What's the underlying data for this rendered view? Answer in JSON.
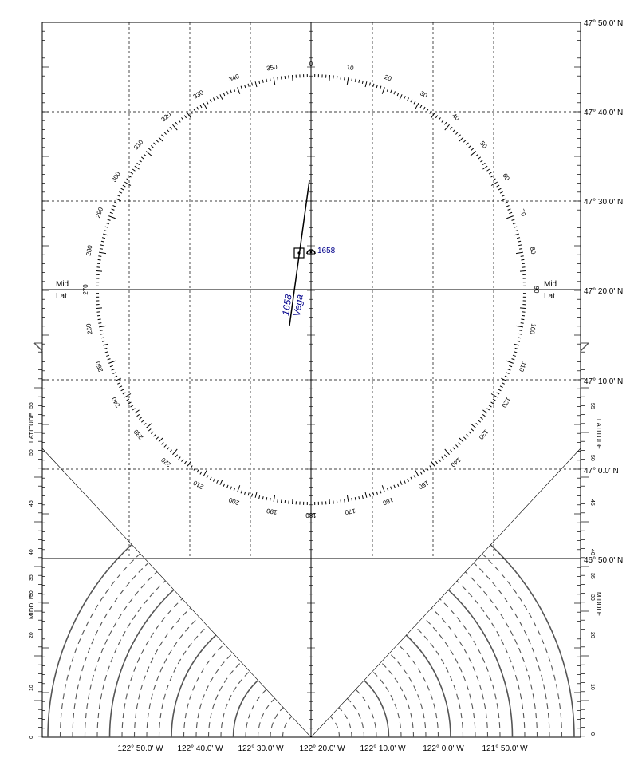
{
  "latitude_labels": [
    "47° 50.0' N",
    "47° 40.0' N",
    "47° 30.0' N",
    "47° 20.0' N",
    "47° 10.0' N",
    "47° 0.0' N",
    "46° 50.0' N"
  ],
  "longitude_labels": [
    "122° 50.0' W",
    "122° 40.0' W",
    "122° 30.0' W",
    "122° 20.0' W",
    "122° 10.0' W",
    "122° 0.0' W",
    "121° 50.0' W"
  ],
  "compass_rose": {
    "labels": [
      "0",
      "10",
      "20",
      "30",
      "40",
      "50",
      "60",
      "70",
      "80",
      "90",
      "100",
      "110",
      "120",
      "130",
      "140",
      "150",
      "160",
      "170",
      "180",
      "190",
      "200",
      "210",
      "220",
      "230",
      "240",
      "250",
      "260",
      "270",
      "280",
      "290",
      "300",
      "310",
      "320",
      "330",
      "340",
      "350"
    ]
  },
  "mid_lat": {
    "left": [
      "Mid",
      "Lat"
    ],
    "right": [
      "Mid",
      "Lat"
    ]
  },
  "scale": {
    "latitude_text": "LATITUDE",
    "middle_text": "MIDDLE",
    "left_ticks": [
      "55",
      "50",
      "45",
      "40",
      "35",
      "30",
      "20",
      "10",
      "0"
    ],
    "right_ticks": [
      "55",
      "50",
      "45",
      "40",
      "35",
      "30",
      "20",
      "10",
      "0"
    ]
  },
  "plot": {
    "lop_time": "1658",
    "lop_body": "Vega",
    "fix_time": "1658",
    "ink_color": "#00008b"
  }
}
